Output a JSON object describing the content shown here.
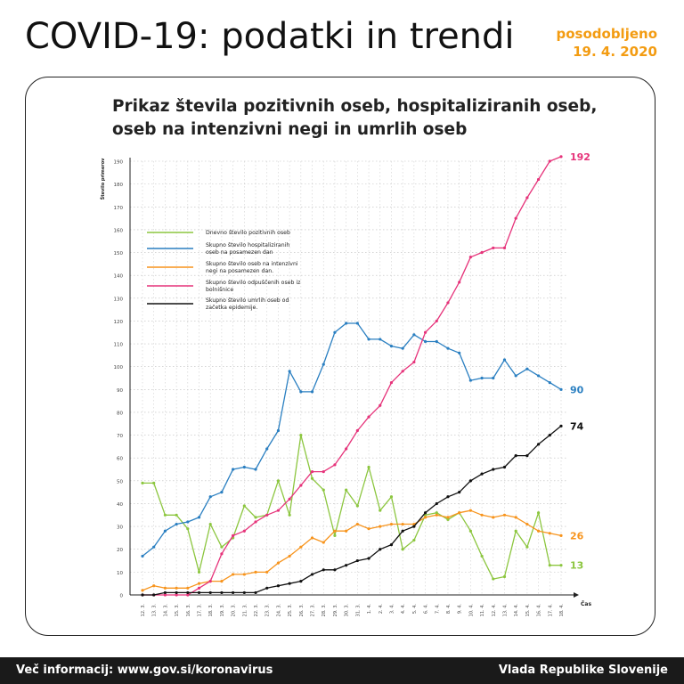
{
  "header": {
    "title": "COVID-19: podatki in trendi",
    "updated_label": "posodobljeno",
    "updated_date": "19. 4. 2020"
  },
  "footer": {
    "info": "Več informacij: www.gov.si/koronavirus",
    "org": "Vlada Republike Slovenije"
  },
  "colors": {
    "accent": "#f39c12",
    "green": "#8cc63f",
    "blue": "#2a7fc1",
    "orange": "#f7941d",
    "pink": "#e6337a",
    "black": "#111111"
  },
  "chart_data": {
    "type": "line",
    "title": "Prikaz števila pozitivnih oseb, hospitaliziranih oseb, oseb na intenzivni negi in umrlih oseb",
    "ylabel": "Število primerov",
    "xlabel": "Čas",
    "ylim": [
      0,
      190
    ],
    "yticks": [
      0,
      10,
      20,
      30,
      40,
      50,
      60,
      70,
      80,
      90,
      100,
      110,
      120,
      130,
      140,
      150,
      160,
      170,
      180,
      190
    ],
    "grid": true,
    "legend_position": "top-left",
    "x": [
      "12. 3.",
      "13. 3.",
      "14. 3.",
      "15. 3.",
      "16. 3.",
      "17. 3.",
      "18. 3.",
      "19. 3.",
      "20. 3.",
      "21. 3.",
      "22. 3.",
      "23. 3.",
      "24. 3.",
      "25. 3.",
      "26. 3.",
      "27. 3.",
      "28. 3.",
      "29. 3.",
      "30. 3.",
      "31. 3.",
      "1. 4.",
      "2. 4.",
      "3. 4.",
      "4. 4.",
      "5. 4.",
      "6. 4.",
      "7. 4.",
      "8. 4.",
      "9. 4.",
      "10. 4.",
      "11. 4.",
      "12. 4.",
      "13. 4.",
      "14. 4.",
      "15. 4.",
      "16. 4.",
      "17. 4.",
      "18. 4."
    ],
    "series": [
      {
        "name": "Dnevno število pozitivnih oseb",
        "color": "#8cc63f",
        "end_label": "13",
        "values": [
          49,
          49,
          35,
          35,
          29,
          10,
          31,
          21,
          25,
          39,
          34,
          35,
          50,
          35,
          70,
          51,
          46,
          26,
          46,
          39,
          56,
          37,
          43,
          20,
          24,
          35,
          36,
          33,
          36,
          28,
          17,
          7,
          8,
          28,
          21,
          36,
          13,
          13
        ]
      },
      {
        "name": "Skupno število hospitaliziranih oseb na posamezen dan",
        "color": "#2a7fc1",
        "end_label": "90",
        "values": [
          17,
          21,
          28,
          31,
          32,
          34,
          43,
          45,
          55,
          56,
          55,
          64,
          72,
          98,
          89,
          89,
          101,
          115,
          119,
          119,
          112,
          112,
          109,
          108,
          114,
          111,
          111,
          108,
          106,
          94,
          95,
          95,
          103,
          96,
          99,
          96,
          93,
          90
        ]
      },
      {
        "name": "Skupno število oseb na intenzivni negi na posamezen dan.",
        "color": "#f7941d",
        "end_label": "26",
        "values": [
          2,
          4,
          3,
          3,
          3,
          5,
          6,
          6,
          9,
          9,
          10,
          10,
          14,
          17,
          21,
          25,
          23,
          28,
          28,
          31,
          29,
          30,
          31,
          31,
          31,
          34,
          35,
          34,
          36,
          37,
          35,
          34,
          35,
          34,
          31,
          28,
          27,
          26
        ]
      },
      {
        "name": "Skupno število odpuščenih oseb iz bolnišnice",
        "color": "#e6337a",
        "end_label": "192",
        "values": [
          0,
          0,
          0,
          0,
          0,
          3,
          6,
          18,
          26,
          28,
          32,
          35,
          37,
          42,
          48,
          54,
          54,
          57,
          64,
          72,
          78,
          83,
          93,
          98,
          102,
          115,
          120,
          128,
          137,
          148,
          150,
          152,
          152,
          165,
          174,
          182,
          190,
          192
        ]
      },
      {
        "name": "Skupno število umrlih oseb od začetka epidemije.",
        "color": "#111111",
        "end_label": "74",
        "values": [
          0,
          0,
          1,
          1,
          1,
          1,
          1,
          1,
          1,
          1,
          1,
          3,
          4,
          5,
          6,
          9,
          11,
          11,
          13,
          15,
          16,
          20,
          22,
          28,
          30,
          36,
          40,
          43,
          45,
          50,
          53,
          55,
          56,
          61,
          61,
          66,
          70,
          74
        ]
      }
    ]
  }
}
